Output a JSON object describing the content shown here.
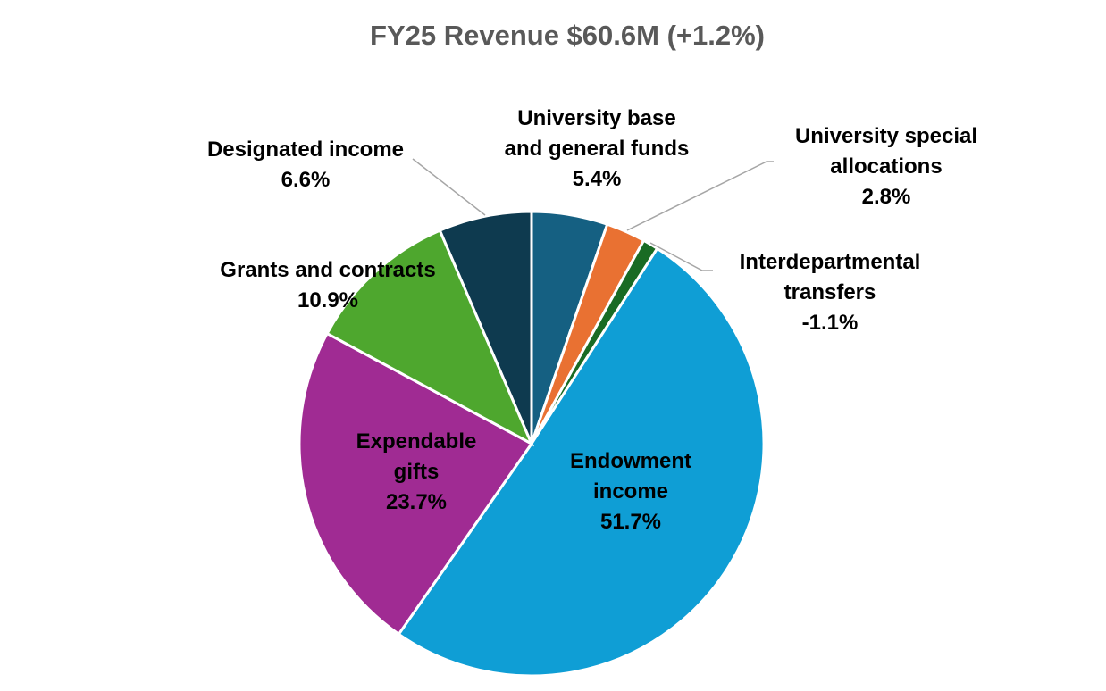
{
  "chart_data": {
    "type": "pie",
    "title": "FY25 Revenue $60.6M (+1.2%)",
    "start_angle": "12 o'clock, clockwise",
    "slices": [
      {
        "name_lines": [
          "University base",
          "and general funds"
        ],
        "value": 5.4,
        "label": "5.4%",
        "color": "#156082"
      },
      {
        "name_lines": [
          "University special",
          "allocations"
        ],
        "value": 2.8,
        "label": "2.8%",
        "color": "#E97132"
      },
      {
        "name_lines": [
          "Interdepartmental",
          "transfers"
        ],
        "value": -1.1,
        "label": "-1.1%",
        "color": "#196B24"
      },
      {
        "name_lines": [
          "Endowment",
          "income"
        ],
        "value": 51.7,
        "label": "51.7%",
        "color": "#0F9ED5"
      },
      {
        "name_lines": [
          "Expendable",
          "gifts"
        ],
        "value": 23.7,
        "label": "23.7%",
        "color": "#A02B93"
      },
      {
        "name_lines": [
          "Grants and contracts"
        ],
        "value": 10.9,
        "label": "10.9%",
        "color": "#4EA72E"
      },
      {
        "name_lines": [
          "Designated income"
        ],
        "value": 6.6,
        "label": "6.6%",
        "color": "#0E3A4F"
      }
    ]
  }
}
